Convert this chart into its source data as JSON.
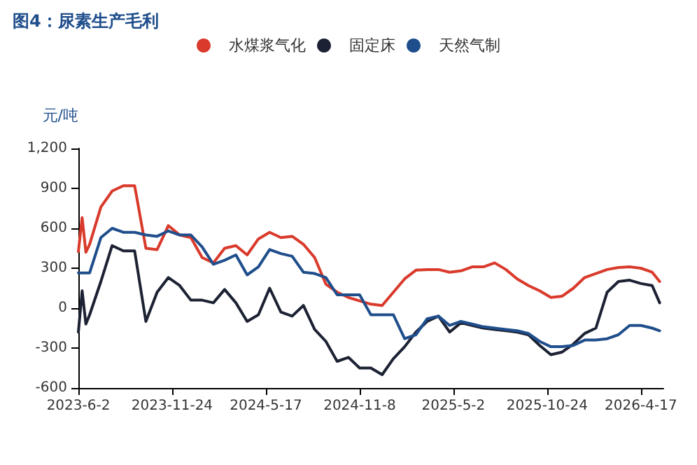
{
  "chart_data": {
    "type": "line",
    "title": "图4：尿素生产毛利",
    "ylabel": "元/吨",
    "x": [
      "2023-06-02",
      "2023-06-09",
      "2023-06-16",
      "2023-06-23",
      "2023-07-14",
      "2023-08-04",
      "2023-08-25",
      "2023-09-15",
      "2023-10-06",
      "2023-10-27",
      "2023-11-17",
      "2023-12-08",
      "2023-12-29",
      "2024-01-19",
      "2024-02-09",
      "2024-03-01",
      "2024-03-22",
      "2024-04-12",
      "2024-05-03",
      "2024-05-24",
      "2024-06-14",
      "2024-07-05",
      "2024-07-26",
      "2024-08-16",
      "2024-09-06",
      "2024-09-27",
      "2024-10-18",
      "2024-11-08",
      "2024-11-29",
      "2024-12-20",
      "2025-01-10",
      "2025-01-31",
      "2025-02-21",
      "2025-03-14",
      "2025-04-04",
      "2025-04-25",
      "2025-05-16",
      "2025-06-06",
      "2025-06-27",
      "2025-07-18",
      "2025-08-08",
      "2025-08-29",
      "2025-09-19",
      "2025-10-10",
      "2025-10-31",
      "2025-11-21",
      "2025-12-12",
      "2026-01-02",
      "2026-01-23",
      "2026-02-13",
      "2026-03-06",
      "2026-03-27",
      "2026-04-17",
      "2026-05-08",
      "2026-05-22"
    ],
    "series": [
      {
        "name": "水煤浆气化",
        "color": "#d93a2b",
        "values": [
          425,
          680,
          420,
          480,
          760,
          880,
          920,
          920,
          450,
          440,
          620,
          550,
          530,
          380,
          340,
          450,
          470,
          400,
          520,
          570,
          530,
          540,
          480,
          380,
          180,
          120,
          80,
          55,
          30,
          20,
          120,
          220,
          285,
          290,
          290,
          270,
          280,
          310,
          310,
          340,
          290,
          220,
          170,
          130,
          80,
          90,
          150,
          230,
          260,
          290,
          305,
          310,
          300,
          270,
          200
        ]
      },
      {
        "name": "固定床",
        "color": "#1c2233",
        "values": [
          -180,
          130,
          -120,
          -50,
          200,
          470,
          430,
          430,
          -100,
          120,
          230,
          170,
          60,
          60,
          40,
          140,
          40,
          -100,
          -50,
          150,
          -30,
          -60,
          20,
          -160,
          -250,
          -400,
          -370,
          -450,
          -450,
          -500,
          -380,
          -290,
          -180,
          -100,
          -60,
          -180,
          -110,
          -130,
          -150,
          -160,
          -170,
          -180,
          -200,
          -280,
          -350,
          -330,
          -270,
          -190,
          -150,
          120,
          200,
          210,
          185,
          170,
          40
        ]
      },
      {
        "name": "天然气制",
        "color": "#1f4e8c",
        "values": [
          265,
          265,
          265,
          265,
          530,
          600,
          570,
          570,
          550,
          540,
          580,
          550,
          550,
          460,
          330,
          360,
          400,
          250,
          310,
          440,
          410,
          390,
          270,
          260,
          230,
          100,
          100,
          100,
          -50,
          -50,
          -50,
          -230,
          -200,
          -80,
          -60,
          -130,
          -100,
          -120,
          -140,
          -150,
          -160,
          -170,
          -190,
          -250,
          -290,
          -290,
          -280,
          -240,
          -240,
          -230,
          -200,
          -130,
          -130,
          -150,
          -170
        ]
      }
    ],
    "xlim": [
      "2023-06-02",
      "2026-05-29"
    ],
    "xticks": [
      {
        "value": "2023-06-02",
        "label": "2023-6-2"
      },
      {
        "value": "2023-11-24",
        "label": "2023-11-24"
      },
      {
        "value": "2024-05-17",
        "label": "2024-5-17"
      },
      {
        "value": "2024-11-08",
        "label": "2024-11-8"
      },
      {
        "value": "2025-05-02",
        "label": "2025-5-2"
      },
      {
        "value": "2025-10-24",
        "label": "2025-10-24"
      },
      {
        "value": "2026-04-17",
        "label": "2026-4-17"
      }
    ],
    "ylim": [
      -600,
      1200
    ],
    "yticks": [
      {
        "value": -600,
        "label": "-600"
      },
      {
        "value": -300,
        "label": "-300"
      },
      0,
      300,
      600,
      900,
      {
        "value": 1200,
        "label": "1,200"
      }
    ],
    "legend": "top",
    "marker": "none",
    "line_style": "solid",
    "grid": false
  }
}
